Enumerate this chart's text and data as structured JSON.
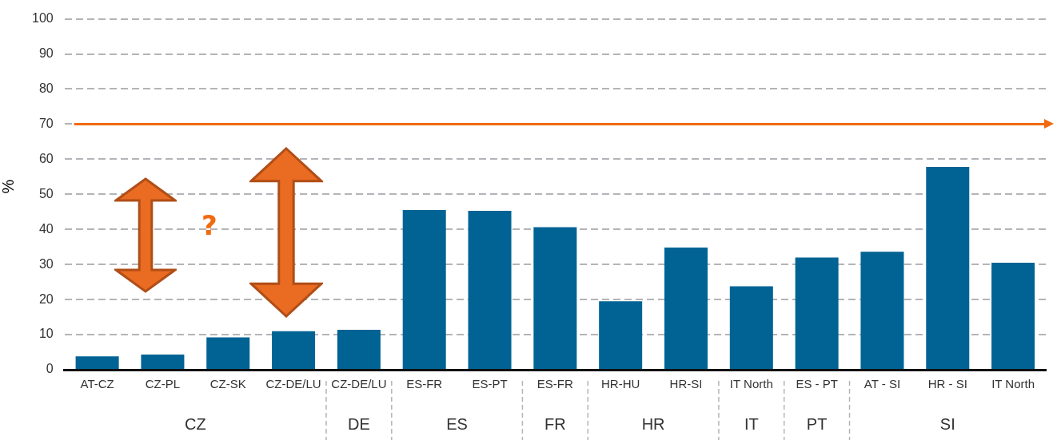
{
  "chart_data": {
    "type": "bar",
    "ylabel": "%",
    "categories": [
      "AT-CZ",
      "CZ-PL",
      "CZ-SK",
      "CZ-DE/LU",
      "CZ-DE/LU",
      "ES-FR",
      "ES-PT",
      "ES-FR",
      "HR-HU",
      "HR-SI",
      "IT North",
      "ES - PT",
      "AT - SI",
      "HR - SI",
      "IT North"
    ],
    "series": [
      {
        "color": "#006394",
        "values": [
          3.8,
          4.3,
          9.2,
          11,
          11.4,
          45.5,
          45.3,
          40.6,
          19.5,
          34.8,
          23.8,
          32,
          33.6,
          57.8,
          30.5
        ]
      }
    ],
    "ylim": [
      0,
      100
    ],
    "yticks": [
      0,
      10,
      20,
      30,
      40,
      50,
      60,
      70,
      80,
      90,
      100
    ],
    "grid": "y",
    "legend": false,
    "ref_lines": [
      {
        "axis": "y",
        "value": 70,
        "color": "#f26a10"
      }
    ],
    "annotations": [
      "?",
      "CZ",
      "DE",
      "ES",
      "FR",
      "HR",
      "IT",
      "PT",
      "SI"
    ]
  }
}
